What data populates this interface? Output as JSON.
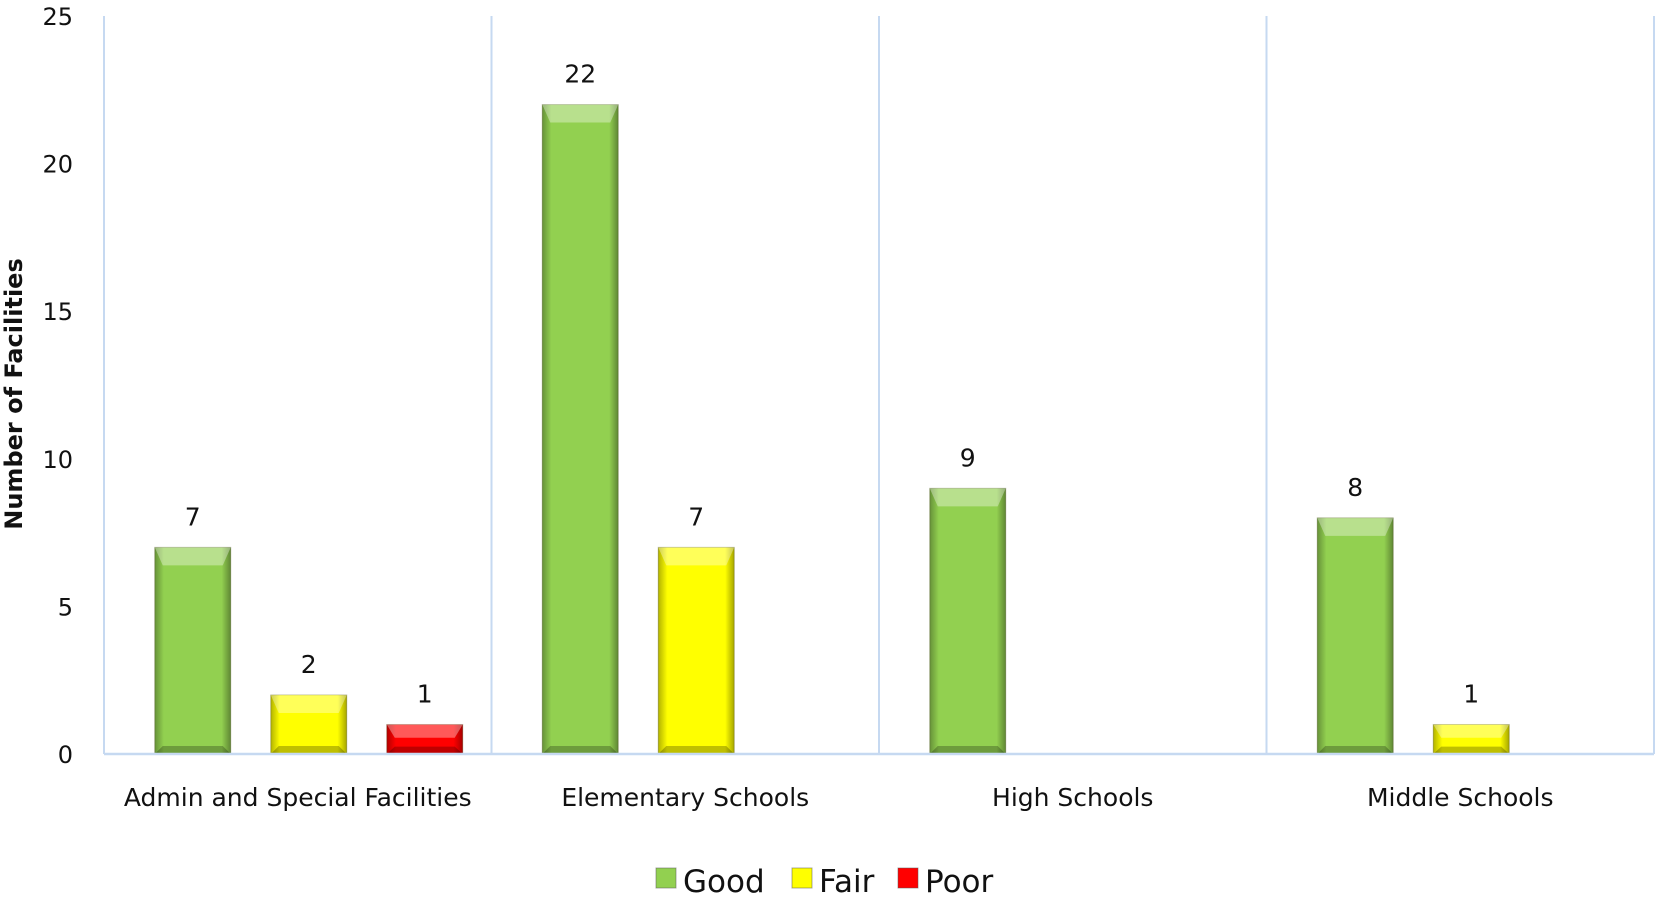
{
  "chart_data": {
    "type": "bar",
    "categories": [
      "Admin and Special Facilities",
      "Elementary Schools",
      "High Schools",
      "Middle Schools"
    ],
    "series": [
      {
        "name": "Good",
        "color": "#92D050",
        "values": [
          7,
          22,
          9,
          8
        ]
      },
      {
        "name": "Fair",
        "color": "#FFFF00",
        "values": [
          2,
          7,
          null,
          1
        ]
      },
      {
        "name": "Poor",
        "color": "#FF0000",
        "values": [
          1,
          null,
          null,
          null
        ]
      }
    ],
    "title": "",
    "xlabel": "",
    "ylabel": "Number of Facilities",
    "ylim": [
      0,
      25
    ],
    "yticks": [
      0,
      5,
      10,
      15,
      20,
      25
    ],
    "data_labels": true,
    "grid": "vertical category separators",
    "grid_color": "#C6D9F1",
    "legend_position": "bottom"
  }
}
